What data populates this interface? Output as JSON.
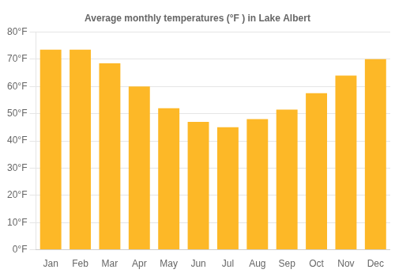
{
  "chart_data": {
    "type": "bar",
    "title": "Average monthly temperatures (°F ) in Lake Albert",
    "categories": [
      "Jan",
      "Feb",
      "Mar",
      "Apr",
      "May",
      "Jun",
      "Jul",
      "Aug",
      "Sep",
      "Oct",
      "Nov",
      "Dec"
    ],
    "values": [
      73.5,
      73.5,
      68.5,
      60.0,
      52.0,
      47.0,
      45.0,
      48.0,
      51.5,
      57.5,
      64.0,
      70.0
    ],
    "color": "#FDB827",
    "ylim": [
      0,
      80
    ],
    "yticks": [
      {
        "value": 0,
        "label": "0°F"
      },
      {
        "value": 10,
        "label": "10°F"
      },
      {
        "value": 20,
        "label": "20°F"
      },
      {
        "value": 30,
        "label": "30°F"
      },
      {
        "value": 40,
        "label": "40°F"
      },
      {
        "value": 50,
        "label": "50°F"
      },
      {
        "value": 60,
        "label": "60°F"
      },
      {
        "value": 70,
        "label": "70°F"
      },
      {
        "value": 80,
        "label": "80°F"
      }
    ],
    "grid": true
  }
}
